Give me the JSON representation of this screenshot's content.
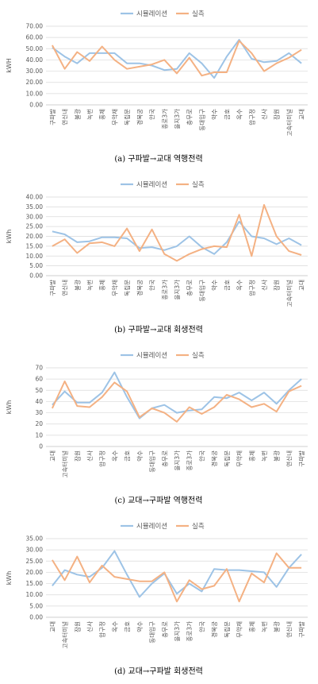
{
  "colors": {
    "sim": "#9dc3e6",
    "meas": "#f4b183",
    "grid": "#d9d9d9",
    "axis": "#bfbfbf"
  },
  "chart_data": [
    {
      "type": "line",
      "caption": "(a) 구파발→교대 역행전력",
      "ylabel": "kWH",
      "ylim": [
        0,
        70
      ],
      "yticks": [
        "0.00",
        "10.00",
        "20.00",
        "30.00",
        "40.00",
        "50.00",
        "60.00",
        "70.00"
      ],
      "legend_position": "top",
      "categories": [
        "구파발",
        "연신내",
        "불광",
        "녹번",
        "홍제",
        "무악재",
        "독립문",
        "경복궁",
        "안국",
        "종로3가",
        "을지3가",
        "충무로",
        "동대입구",
        "약수",
        "금호",
        "옥수",
        "압구정",
        "신사",
        "잠원",
        "고속터미널",
        "교대"
      ],
      "series": [
        {
          "name": "시뮬레이션",
          "values": [
            51,
            43,
            37,
            46,
            46,
            46,
            37,
            37,
            35,
            31,
            32,
            46,
            37,
            24,
            43,
            58,
            41,
            38,
            39,
            46,
            37
          ]
        },
        {
          "name": "실측",
          "values": [
            53,
            32,
            47,
            39,
            52,
            40,
            32,
            34,
            36,
            40,
            28,
            42,
            26,
            29,
            29,
            57,
            46,
            30,
            37,
            42,
            49
          ]
        }
      ]
    },
    {
      "type": "line",
      "caption": "(b) 구파발→교대 회생전력",
      "ylabel": "kWh",
      "ylim": [
        0,
        40
      ],
      "yticks": [
        "0.00",
        "5.00",
        "10.00",
        "15.00",
        "20.00",
        "25.00",
        "30.00",
        "35.00",
        "40.00"
      ],
      "legend_position": "top",
      "categories": [
        "구파발",
        "연신내",
        "불광",
        "녹번",
        "홍제",
        "무악재",
        "독립문",
        "경복궁",
        "안국",
        "종로3가",
        "을지3가",
        "충무로",
        "동대입구",
        "약수",
        "금호",
        "옥수",
        "압구정",
        "신사",
        "잠원",
        "고속터미널",
        "교대"
      ],
      "series": [
        {
          "name": "시뮬레이션",
          "values": [
            22.5,
            21,
            17,
            17.5,
            19.5,
            19.5,
            19,
            14,
            14.5,
            13,
            15,
            20,
            14.5,
            11,
            17,
            27.5,
            20,
            19,
            16,
            19,
            15.5
          ]
        },
        {
          "name": "실측",
          "values": [
            15,
            18.5,
            11.5,
            16.5,
            17,
            15,
            24,
            12.5,
            23.5,
            11,
            7.5,
            11,
            13.5,
            15,
            14.5,
            31,
            10,
            36,
            20,
            12.5,
            10.5
          ]
        }
      ]
    },
    {
      "type": "line",
      "caption": "(c) 교대→구파발 역행전력",
      "ylabel": "kWh",
      "ylim": [
        0,
        70
      ],
      "yticks": [
        "0",
        "10",
        "20",
        "30",
        "40",
        "50",
        "60",
        "70"
      ],
      "legend_position": "top",
      "categories": [
        "교대",
        "고속터미널",
        "잠원",
        "신사",
        "압구정",
        "옥수",
        "금호",
        "약수",
        "동대입구",
        "충무로",
        "을지3가",
        "종로3가",
        "안국",
        "경복궁",
        "독립문",
        "무악재",
        "홍제",
        "녹번",
        "불광",
        "연신내",
        "구파발"
      ],
      "series": [
        {
          "name": "시뮬레이션",
          "values": [
            37,
            49,
            39,
            39,
            48,
            66,
            44,
            25,
            34,
            37,
            30,
            32,
            33,
            44,
            43,
            48,
            41,
            48,
            38,
            50,
            60
          ]
        },
        {
          "name": "실측",
          "values": [
            34,
            58,
            36,
            35,
            44,
            57,
            49,
            26,
            34,
            30,
            22,
            35,
            29,
            35,
            46,
            42,
            35,
            38,
            31,
            49,
            54
          ]
        }
      ]
    },
    {
      "type": "line",
      "caption": "(d) 교대→구파발 회생전력",
      "ylabel": "kWh",
      "ylim": [
        0,
        35
      ],
      "yticks": [
        "0.00",
        "5.00",
        "10.00",
        "15.00",
        "20.00",
        "25.00",
        "30.00",
        "35.00"
      ],
      "legend_position": "top",
      "categories": [
        "교대",
        "고속터미널",
        "잠원",
        "신사",
        "압구정",
        "옥수",
        "금호",
        "약수",
        "동대입구",
        "충무로",
        "을지3가",
        "종로3가",
        "안국",
        "경복궁",
        "독립문",
        "무악재",
        "홍제",
        "녹번",
        "불광",
        "연신내",
        "구파발"
      ],
      "series": [
        {
          "name": "시뮬레이션",
          "values": [
            14,
            21,
            19,
            18,
            22,
            29.5,
            19,
            9,
            15,
            19.5,
            10.5,
            15,
            11.5,
            21.5,
            21,
            21,
            20.5,
            20,
            13.5,
            22,
            28
          ]
        },
        {
          "name": "실측",
          "values": [
            25.5,
            16.5,
            27,
            15.5,
            23,
            18,
            17,
            16,
            16,
            20,
            7,
            16.5,
            12.5,
            14,
            21.5,
            7,
            19.5,
            15.5,
            28.5,
            22,
            22
          ]
        }
      ]
    }
  ]
}
